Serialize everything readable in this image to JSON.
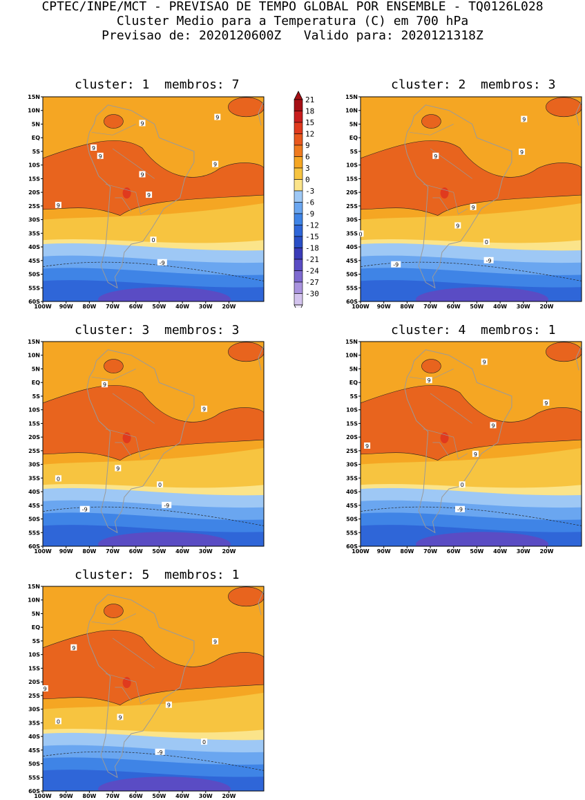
{
  "header": {
    "line1": "CPTEC/INPE/MCT - PREVISAO DE TEMPO GLOBAL POR ENSEMBLE - TQ0126L028",
    "line2": "Cluster Medio para a Temperatura (C) em 700 hPa",
    "line3": "Previsao de: 2020120600Z   Valido para: 2020121318Z"
  },
  "panels": [
    {
      "title": "cluster: 1  membros: 7",
      "contour_labels": [
        "9",
        "9",
        "9",
        "9",
        "9",
        "9",
        "9",
        "9",
        "0",
        "-9"
      ]
    },
    {
      "title": "cluster: 2  membros: 3",
      "contour_labels": [
        "9",
        "9",
        "9",
        "9",
        "9",
        "0",
        "0",
        "-9",
        "-9"
      ]
    },
    {
      "title": "cluster: 3  membros: 3",
      "contour_labels": [
        "9",
        "9",
        "9",
        "0",
        "0",
        "-9",
        "-9"
      ]
    },
    {
      "title": "cluster: 4  membros: 1",
      "contour_labels": [
        "9",
        "9",
        "9",
        "9",
        "9",
        "9",
        "0",
        "-9"
      ]
    },
    {
      "title": "cluster: 5  membros: 1",
      "contour_labels": [
        "9",
        "9",
        "9",
        "9",
        "9",
        "0",
        "0",
        "-9"
      ]
    }
  ],
  "axes": {
    "lat_labels": [
      "15N",
      "10N",
      "5N",
      "EQ",
      "5S",
      "10S",
      "15S",
      "20S",
      "25S",
      "30S",
      "35S",
      "40S",
      "45S",
      "50S",
      "55S",
      "60S"
    ],
    "lon_labels": [
      "100W",
      "90W",
      "80W",
      "70W",
      "60W",
      "50W",
      "40W",
      "30W",
      "20W"
    ]
  },
  "colorbar": {
    "labels": [
      "21",
      "18",
      "15",
      "12",
      "9",
      "6",
      "3",
      "0",
      "-3",
      "-6",
      "-9",
      "-12",
      "-15",
      "-18",
      "-21",
      "-24",
      "-27",
      "-30"
    ],
    "colors": [
      "#a50f15",
      "#c81e1e",
      "#e03a1e",
      "#e8581e",
      "#ef7a1e",
      "#f5a623",
      "#f7c440",
      "#fbe48a",
      "#9ec8f5",
      "#6aa6f0",
      "#3f84e6",
      "#2f66d8",
      "#2a4fc6",
      "#3b3cb8",
      "#5a4cc4",
      "#7e6ad0",
      "#a993de",
      "#d3c3ee"
    ]
  },
  "colors": {
    "orange_light": "#f5a623",
    "orange_mid": "#ef8f1e",
    "orange_dark": "#e8641e",
    "red_core": "#e03a1e",
    "yellow_band": "#f7c440",
    "pale_yellow": "#fbe48a",
    "blue_light": "#9ec8f5",
    "blue_mid": "#6aa6f0",
    "blue_dark": "#3f84e6",
    "blue_deep": "#2f66d8",
    "purple": "#5a4cc4",
    "coast": "#9a9a9a"
  }
}
